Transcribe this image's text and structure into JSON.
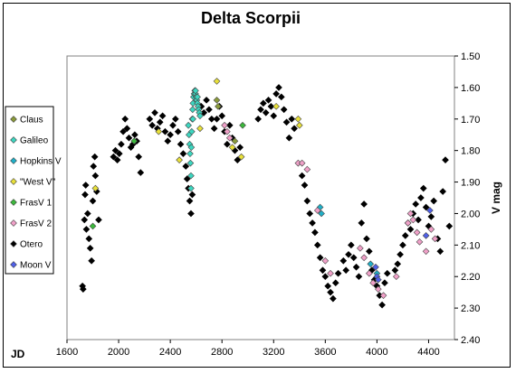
{
  "chart_data": {
    "type": "scatter",
    "title": "Delta Scorpii",
    "xlabel": "JD",
    "ylabel": "V mag",
    "xlim": [
      1600,
      4600
    ],
    "ylim": [
      1.5,
      2.4
    ],
    "y_inverted": true,
    "y_axis_side": "right",
    "xticks": [
      "1600",
      "2000",
      "2400",
      "2800",
      "3200",
      "3600",
      "4000",
      "4400"
    ],
    "yticks": [
      "1.50",
      "1.60",
      "1.70",
      "1.80",
      "1.90",
      "2.00",
      "2.10",
      "2.20",
      "2.30",
      "2.40"
    ],
    "grid": false,
    "legend_position": "left",
    "series": [
      {
        "name": "Claus",
        "color": "#8a9a3a",
        "points": [
          [
            2760,
            1.64
          ],
          [
            2770,
            1.66
          ],
          [
            2900,
            1.77
          ]
        ]
      },
      {
        "name": "Galileo",
        "color": "#3dd6c0",
        "points": [
          [
            2540,
            1.72
          ],
          [
            2545,
            1.75
          ],
          [
            2550,
            1.78
          ],
          [
            2553,
            1.81
          ],
          [
            2556,
            1.84
          ],
          [
            2560,
            1.88
          ],
          [
            2563,
            1.79
          ],
          [
            2566,
            1.74
          ],
          [
            2570,
            1.7
          ],
          [
            2573,
            1.67
          ],
          [
            2576,
            1.65
          ],
          [
            2580,
            1.63
          ],
          [
            2585,
            1.62
          ],
          [
            2590,
            1.61
          ],
          [
            2595,
            1.62
          ],
          [
            2600,
            1.63
          ],
          [
            2605,
            1.64
          ],
          [
            2610,
            1.65
          ],
          [
            2615,
            1.66
          ],
          [
            2620,
            1.67
          ],
          [
            2625,
            1.68
          ],
          [
            2630,
            1.69
          ],
          [
            2560,
            1.92
          ],
          [
            2575,
            1.7
          ],
          [
            2595,
            1.61
          ],
          [
            2610,
            1.63
          ]
        ]
      },
      {
        "name": "Hopkins V",
        "color": "#20b0c8",
        "points": [
          [
            3560,
            1.98
          ],
          [
            3570,
            2.0
          ],
          [
            3950,
            2.16
          ],
          [
            4000,
            2.19
          ]
        ]
      },
      {
        "name": "\"West V\"",
        "color": "#e8e03a",
        "points": [
          [
            1820,
            1.92
          ],
          [
            2310,
            1.74
          ],
          [
            2470,
            1.83
          ],
          [
            2630,
            1.73
          ],
          [
            2760,
            1.58
          ],
          [
            2880,
            1.79
          ],
          [
            2950,
            1.82
          ],
          [
            3220,
            1.66
          ],
          [
            3390,
            1.7
          ],
          [
            3400,
            1.72
          ]
        ]
      },
      {
        "name": "FrasV 1",
        "color": "#3cb83c",
        "points": [
          [
            1800,
            2.04
          ],
          [
            2120,
            1.77
          ],
          [
            2960,
            1.72
          ]
        ]
      },
      {
        "name": "FrasV 2",
        "color": "#f0a0c8",
        "points": [
          [
            2820,
            1.72
          ],
          [
            2840,
            1.74
          ],
          [
            2860,
            1.76
          ],
          [
            3390,
            1.84
          ],
          [
            3420,
            1.84
          ],
          [
            3460,
            1.86
          ],
          [
            3540,
            1.99
          ],
          [
            3600,
            2.15
          ],
          [
            3640,
            2.19
          ],
          [
            3870,
            2.11
          ],
          [
            3900,
            2.14
          ],
          [
            3940,
            2.19
          ],
          [
            3970,
            2.22
          ],
          [
            4010,
            2.24
          ],
          [
            4050,
            2.26
          ],
          [
            4150,
            2.2
          ],
          [
            4240,
            2.03
          ],
          [
            4260,
            2.0
          ],
          [
            4280,
            2.02
          ],
          [
            4310,
            2.06
          ],
          [
            4330,
            2.09
          ],
          [
            4380,
            2.12
          ],
          [
            4420,
            2.05
          ],
          [
            4450,
            2.08
          ]
        ]
      },
      {
        "name": "Otero",
        "color": "#000000",
        "points": [
          [
            1720,
            2.23
          ],
          [
            1725,
            2.24
          ],
          [
            1735,
            2.02
          ],
          [
            1740,
            1.94
          ],
          [
            1745,
            1.91
          ],
          [
            1750,
            2.05
          ],
          [
            1760,
            2.0
          ],
          [
            1770,
            2.08
          ],
          [
            1780,
            2.11
          ],
          [
            1790,
            2.15
          ],
          [
            1800,
            1.96
          ],
          [
            1805,
            1.85
          ],
          [
            1815,
            1.82
          ],
          [
            1820,
            1.88
          ],
          [
            1830,
            1.93
          ],
          [
            1845,
            2.02
          ],
          [
            1960,
            1.82
          ],
          [
            1975,
            1.8
          ],
          [
            1990,
            1.83
          ],
          [
            2005,
            1.81
          ],
          [
            2020,
            1.78
          ],
          [
            2035,
            1.74
          ],
          [
            2050,
            1.7
          ],
          [
            2065,
            1.73
          ],
          [
            2080,
            1.76
          ],
          [
            2095,
            1.79
          ],
          [
            2110,
            1.78
          ],
          [
            2125,
            1.75
          ],
          [
            2140,
            1.77
          ],
          [
            2155,
            1.82
          ],
          [
            2170,
            1.87
          ],
          [
            2240,
            1.7
          ],
          [
            2260,
            1.72
          ],
          [
            2280,
            1.68
          ],
          [
            2300,
            1.73
          ],
          [
            2320,
            1.71
          ],
          [
            2340,
            1.69
          ],
          [
            2360,
            1.74
          ],
          [
            2380,
            1.77
          ],
          [
            2400,
            1.75
          ],
          [
            2420,
            1.72
          ],
          [
            2440,
            1.7
          ],
          [
            2460,
            1.74
          ],
          [
            2480,
            1.78
          ],
          [
            2500,
            1.81
          ],
          [
            2520,
            1.85
          ],
          [
            2530,
            1.89
          ],
          [
            2540,
            1.92
          ],
          [
            2550,
            1.96
          ],
          [
            2560,
            2.0
          ],
          [
            2570,
            1.94
          ],
          [
            2640,
            1.66
          ],
          [
            2660,
            1.68
          ],
          [
            2680,
            1.64
          ],
          [
            2700,
            1.67
          ],
          [
            2720,
            1.7
          ],
          [
            2740,
            1.73
          ],
          [
            2760,
            1.7
          ],
          [
            2780,
            1.66
          ],
          [
            2800,
            1.69
          ],
          [
            2820,
            1.74
          ],
          [
            2840,
            1.78
          ],
          [
            2860,
            1.72
          ],
          [
            2880,
            1.76
          ],
          [
            2900,
            1.8
          ],
          [
            2920,
            1.83
          ],
          [
            2940,
            1.79
          ],
          [
            3080,
            1.7
          ],
          [
            3100,
            1.67
          ],
          [
            3120,
            1.65
          ],
          [
            3140,
            1.68
          ],
          [
            3160,
            1.64
          ],
          [
            3180,
            1.66
          ],
          [
            3200,
            1.69
          ],
          [
            3220,
            1.62
          ],
          [
            3240,
            1.6
          ],
          [
            3260,
            1.63
          ],
          [
            3280,
            1.67
          ],
          [
            3300,
            1.71
          ],
          [
            3320,
            1.76
          ],
          [
            3340,
            1.7
          ],
          [
            3360,
            1.73
          ],
          [
            3420,
            1.88
          ],
          [
            3440,
            1.91
          ],
          [
            3460,
            1.96
          ],
          [
            3480,
            2.0
          ],
          [
            3500,
            2.03
          ],
          [
            3520,
            2.06
          ],
          [
            3540,
            2.1
          ],
          [
            3560,
            2.14
          ],
          [
            3580,
            2.18
          ],
          [
            3600,
            2.2
          ],
          [
            3620,
            2.23
          ],
          [
            3640,
            2.25
          ],
          [
            3660,
            2.27
          ],
          [
            3680,
            2.22
          ],
          [
            3700,
            2.19
          ],
          [
            3740,
            2.15
          ],
          [
            3760,
            2.18
          ],
          [
            3780,
            2.13
          ],
          [
            3800,
            2.1
          ],
          [
            3820,
            2.14
          ],
          [
            3840,
            2.17
          ],
          [
            3860,
            2.2
          ],
          [
            3880,
            2.03
          ],
          [
            3900,
            1.97
          ],
          [
            3920,
            2.08
          ],
          [
            3940,
            2.12
          ],
          [
            3960,
            2.18
          ],
          [
            3980,
            2.21
          ],
          [
            4000,
            2.23
          ],
          [
            4020,
            2.26
          ],
          [
            4040,
            2.29
          ],
          [
            4060,
            2.22
          ],
          [
            4080,
            2.19
          ],
          [
            4140,
            2.18
          ],
          [
            4160,
            2.16
          ],
          [
            4180,
            2.13
          ],
          [
            4200,
            2.1
          ],
          [
            4220,
            2.07
          ],
          [
            4240,
            2.03
          ],
          [
            4260,
            2.05
          ],
          [
            4280,
            2.0
          ],
          [
            4300,
            1.97
          ],
          [
            4320,
            2.02
          ],
          [
            4340,
            1.95
          ],
          [
            4360,
            1.92
          ],
          [
            4380,
            1.98
          ],
          [
            4400,
            2.04
          ],
          [
            4420,
            2.01
          ],
          [
            4440,
            1.96
          ],
          [
            4470,
            2.08
          ],
          [
            4490,
            2.12
          ],
          [
            4510,
            1.93
          ],
          [
            4530,
            1.83
          ],
          [
            4560,
            2.04
          ]
        ]
      },
      {
        "name": "Moon V",
        "color": "#5060e8",
        "points": [
          [
            3990,
            2.17
          ],
          [
            4000,
            2.2
          ],
          [
            4010,
            2.21
          ],
          [
            4380,
            2.07
          ],
          [
            4410,
            1.99
          ]
        ]
      }
    ]
  }
}
